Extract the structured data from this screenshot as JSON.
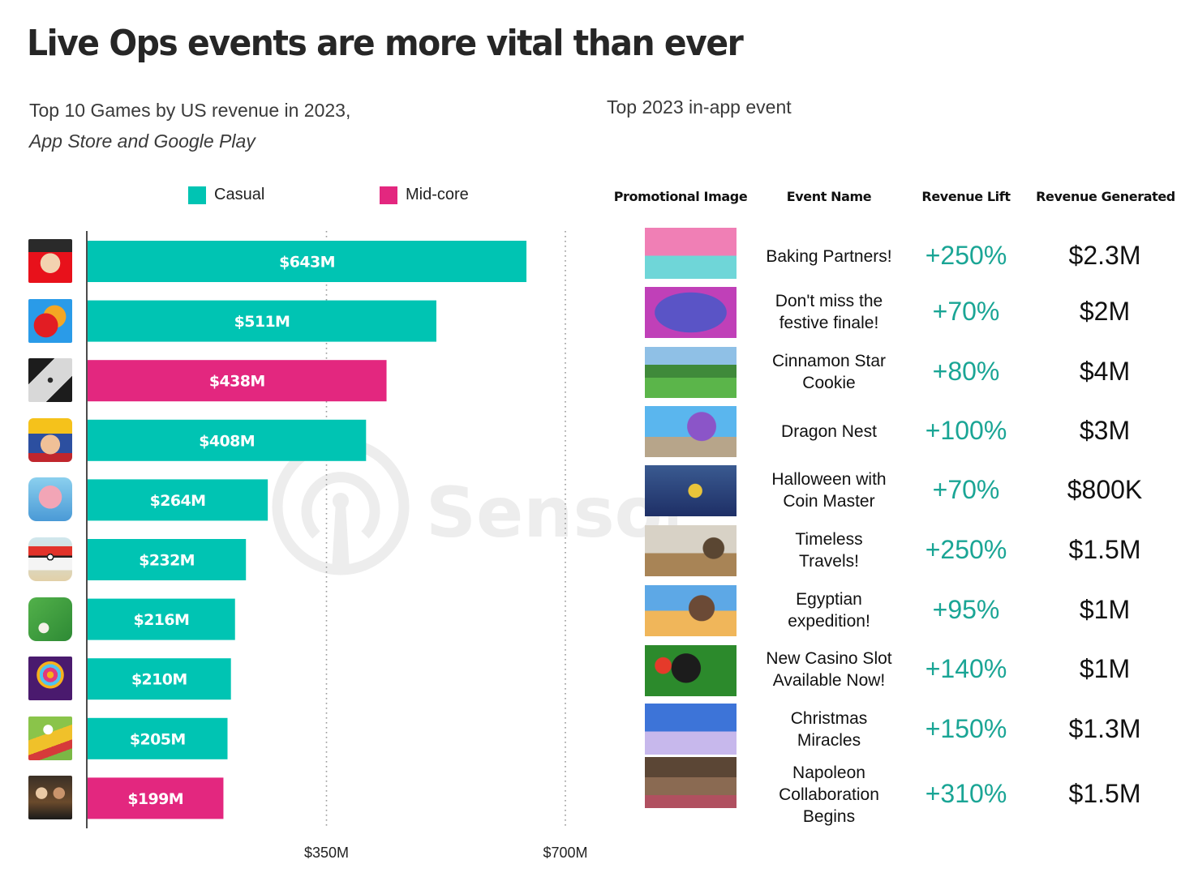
{
  "header": {
    "title": "Live Ops events are more vital than ever",
    "left_subtitle_line1": "Top 10 Games by US revenue in 2023,",
    "left_subtitle_line2": "App Store and Google Play",
    "right_subtitle": "Top 2023 in-app event"
  },
  "watermark": {
    "text": "SensorTower"
  },
  "colors": {
    "casual": "#00c4b3",
    "midcore": "#e3277f",
    "lift_text": "#1aa595",
    "axis": "#111111",
    "gridline": "#9a9a9a"
  },
  "chart_data": {
    "type": "bar",
    "orientation": "horizontal",
    "title": "Top 10 Games by US revenue in 2023, App Store and Google Play",
    "xlabel": "",
    "ylabel": "",
    "xlim": [
      0,
      700
    ],
    "units": "USD millions",
    "grid": "vertical dotted at ticks",
    "legend_position": "top",
    "legend": [
      {
        "name": "Casual",
        "color": "#00c4b3"
      },
      {
        "name": "Mid-core",
        "color": "#e3277f"
      }
    ],
    "ticks": [
      {
        "value": 350,
        "label": "$350M"
      },
      {
        "value": 700,
        "label": "$700M"
      }
    ],
    "categories": [
      "monopoly-go-icon",
      "candy-crush-icon",
      "roblox-icon",
      "royal-match-icon",
      "coin-master-icon",
      "pokemon-go-icon",
      "gardenscapes-icon",
      "jackpot-party-icon",
      "township-icon",
      "evony-icon"
    ],
    "bars": [
      {
        "icon": "monopoly-go-icon",
        "value": 643,
        "label": "$643M",
        "segment": "Casual"
      },
      {
        "icon": "candy-crush-icon",
        "value": 511,
        "label": "$511M",
        "segment": "Casual"
      },
      {
        "icon": "roblox-icon",
        "value": 438,
        "label": "$438M",
        "segment": "Mid-core"
      },
      {
        "icon": "royal-match-icon",
        "value": 408,
        "label": "$408M",
        "segment": "Casual"
      },
      {
        "icon": "coin-master-icon",
        "value": 264,
        "label": "$264M",
        "segment": "Casual"
      },
      {
        "icon": "pokemon-go-icon",
        "value": 232,
        "label": "$232M",
        "segment": "Casual"
      },
      {
        "icon": "gardenscapes-icon",
        "value": 216,
        "label": "$216M",
        "segment": "Casual"
      },
      {
        "icon": "jackpot-party-icon",
        "value": 210,
        "label": "$210M",
        "segment": "Casual"
      },
      {
        "icon": "township-icon",
        "value": 205,
        "label": "$205M",
        "segment": "Casual"
      },
      {
        "icon": "evony-icon",
        "value": 199,
        "label": "$199M",
        "segment": "Mid-core"
      }
    ]
  },
  "table": {
    "headers": [
      "Promotional Image",
      "Event Name",
      "Revenue Lift",
      "Revenue Generated"
    ],
    "rows": [
      {
        "image": "baking-partners-image",
        "event_lines": [
          "Baking Partners!"
        ],
        "lift": "+250%",
        "revenue": "$2.3M"
      },
      {
        "image": "festive-finale-image",
        "event_lines": [
          "Don't miss the",
          "festive finale!"
        ],
        "lift": "+70%",
        "revenue": "$2M"
      },
      {
        "image": "cinnamon-star-cookie-image",
        "event_lines": [
          "Cinnamon Star",
          "Cookie"
        ],
        "lift": "+80%",
        "revenue": "$4M"
      },
      {
        "image": "dragon-nest-image",
        "event_lines": [
          "Dragon Nest"
        ],
        "lift": "+100%",
        "revenue": "$3M"
      },
      {
        "image": "halloween-coin-master-image",
        "event_lines": [
          "Halloween with",
          "Coin Master"
        ],
        "lift": "+70%",
        "revenue": "$800K"
      },
      {
        "image": "timeless-travels-image",
        "event_lines": [
          "Timeless",
          "Travels!"
        ],
        "lift": "+250%",
        "revenue": "$1.5M"
      },
      {
        "image": "egyptian-expedition-image",
        "event_lines": [
          "Egyptian",
          "expedition!"
        ],
        "lift": "+95%",
        "revenue": "$1M"
      },
      {
        "image": "new-casino-slot-image",
        "event_lines": [
          "New Casino Slot",
          "Available Now!"
        ],
        "lift": "+140%",
        "revenue": "$1M"
      },
      {
        "image": "christmas-miracles-image",
        "event_lines": [
          "Christmas",
          "Miracles"
        ],
        "lift": "+150%",
        "revenue": "$1.3M"
      },
      {
        "image": "napoleon-collaboration-image",
        "event_lines": [
          "Napoleon",
          "Collaboration",
          "Begins"
        ],
        "lift": "+310%",
        "revenue": "$1.5M"
      }
    ]
  }
}
